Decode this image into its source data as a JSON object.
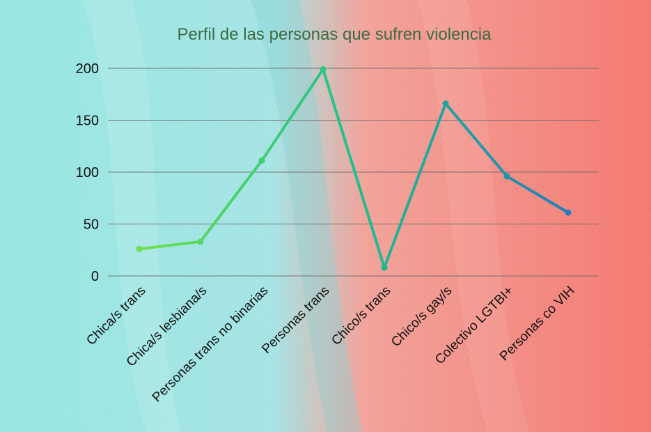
{
  "chart_data": {
    "type": "line",
    "title": "Perfil de las personas que sufren violencia",
    "xlabel": "",
    "ylabel": "",
    "categories": [
      "Chica/s trans",
      "Chica/s lesbiana/s",
      "Personas trans no binarias",
      "Personas trans",
      "Chico/s trans",
      "Chico/s gay/s",
      "Colectivo LGTBI+",
      "Personas co VIH"
    ],
    "values": [
      26,
      33,
      111,
      199,
      8,
      166,
      96,
      61
    ],
    "ylim": [
      0,
      200
    ],
    "yticks": [
      0,
      50,
      100,
      150,
      200
    ],
    "grid": true,
    "legend": "none",
    "colors": {
      "line_start": "#6fe04a",
      "line_mid": "#1fbf8f",
      "line_end": "#1f7fb8",
      "title": "#3a6b45",
      "background_left": "#8ee3e0",
      "background_right": "#f3756d"
    }
  }
}
